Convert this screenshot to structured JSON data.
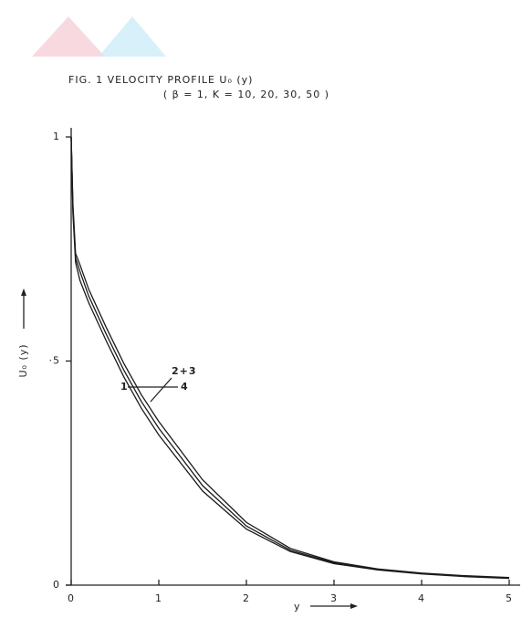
{
  "chart_data": {
    "type": "line",
    "title": "FIG. 1    VELOCITY  PROFILE  U₀ (y)",
    "subtitle": "( β = 1,  K = 10, 20, 30, 50 )",
    "x_label": "y",
    "y_label": "U₀ (y)",
    "x": [
      0,
      0.02,
      0.05,
      0.1,
      0.2,
      0.4,
      0.6,
      0.8,
      1.0,
      1.5,
      2.0,
      2.5,
      3.0,
      3.5,
      4.0,
      4.5,
      5.0
    ],
    "series": [
      {
        "name": "1",
        "color": "#1a1a1a",
        "values": [
          1,
          0.83,
          0.72,
          0.68,
          0.63,
          0.545,
          0.465,
          0.395,
          0.335,
          0.21,
          0.125,
          0.075,
          0.048,
          0.034,
          0.025,
          0.019,
          0.015
        ]
      },
      {
        "name": "2+3",
        "color": "#1a1a1a",
        "values": [
          1,
          0.84,
          0.73,
          0.7,
          0.645,
          0.56,
          0.48,
          0.41,
          0.35,
          0.222,
          0.132,
          0.078,
          0.05,
          0.035,
          0.026,
          0.02,
          0.016
        ]
      },
      {
        "name": "4",
        "color": "#1a1a1a",
        "values": [
          1,
          0.85,
          0.74,
          0.715,
          0.66,
          0.575,
          0.495,
          0.425,
          0.365,
          0.235,
          0.14,
          0.082,
          0.052,
          0.036,
          0.027,
          0.021,
          0.017
        ]
      }
    ],
    "xlim": [
      0,
      5
    ],
    "ylim": [
      0,
      1
    ],
    "xticks": [
      0,
      1,
      2,
      3,
      4,
      5
    ],
    "yticks": [
      0,
      {
        "value": 0.5,
        "label": "·5"
      },
      1
    ]
  }
}
